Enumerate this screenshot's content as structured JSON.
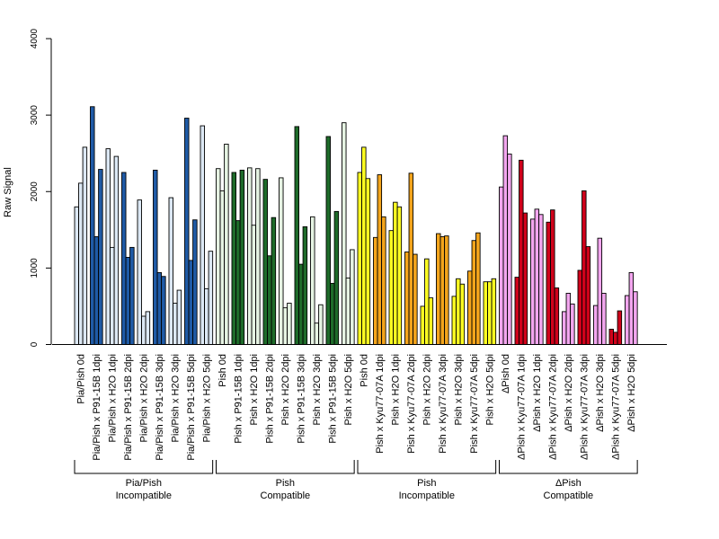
{
  "chart_data": {
    "type": "bar",
    "ylabel": "Raw Signal",
    "ylim": [
      0,
      4000
    ],
    "yticks": [
      0,
      1000,
      2000,
      3000,
      4000
    ],
    "grid": false,
    "bar_edge_color": "#000000",
    "colors": {
      "light_blue": "#dce8f4",
      "dark_blue": "#1f5aa6",
      "light_green": "#e6f4e3",
      "dark_green": "#1e6b2a",
      "yellow": "#ffff22",
      "orange": "#f4a51c",
      "pink": "#f3a6ef",
      "red": "#d0021b"
    },
    "categories": [
      {
        "label": "Pia/Pish 0d",
        "color": "light_blue",
        "values": [
          1800,
          2110,
          2580
        ]
      },
      {
        "label": "Pia/Pish x P91-15B 1dpi",
        "color": "dark_blue",
        "values": [
          3110,
          1410,
          2290
        ]
      },
      {
        "label": "Pia/Pish x H2O 1dpi",
        "color": "light_blue",
        "values": [
          2560,
          1270,
          2460
        ]
      },
      {
        "label": "Pia/Pish x P91-15B 2dpi",
        "color": "dark_blue",
        "values": [
          2250,
          1140,
          1270
        ]
      },
      {
        "label": "Pia/Pish x H2O 2dpi",
        "color": "light_blue",
        "values": [
          1890,
          370,
          430
        ]
      },
      {
        "label": "Pia/Pish x P91-15B 3dpi",
        "color": "dark_blue",
        "values": [
          2280,
          940,
          890
        ]
      },
      {
        "label": "Pia/Pish x H2O 3dpi",
        "color": "light_blue",
        "values": [
          1920,
          540,
          710
        ]
      },
      {
        "label": "Pia/Pish x P91-15B 5dpi",
        "color": "dark_blue",
        "values": [
          2960,
          1100,
          1630
        ]
      },
      {
        "label": "Pia/Pish x H2O 5dpi",
        "color": "light_blue",
        "values": [
          2860,
          730,
          1220
        ]
      },
      {
        "label": "Pish 0d",
        "color": "light_green",
        "values": [
          2300,
          2010,
          2620
        ]
      },
      {
        "label": "Pish x P91-15B 1dpi",
        "color": "dark_green",
        "values": [
          2250,
          1620,
          2280
        ]
      },
      {
        "label": "Pish x H2O 1dpi",
        "color": "light_green",
        "values": [
          2310,
          1560,
          2300
        ]
      },
      {
        "label": "Pish x P91-15B 2dpi",
        "color": "dark_green",
        "values": [
          2160,
          1160,
          1660
        ]
      },
      {
        "label": "Pish x H2O 2dpi",
        "color": "light_green",
        "values": [
          2180,
          480,
          540
        ]
      },
      {
        "label": "Pish x P91-15B 3dpi",
        "color": "dark_green",
        "values": [
          2850,
          1050,
          1540
        ]
      },
      {
        "label": "Pish x H2O 3dpi",
        "color": "light_green",
        "values": [
          1670,
          280,
          520
        ]
      },
      {
        "label": "Pish x P91-15B 5dpi",
        "color": "dark_green",
        "values": [
          2720,
          800,
          1740
        ]
      },
      {
        "label": "Pish x H2O 5dpi",
        "color": "light_green",
        "values": [
          2900,
          870,
          1240
        ]
      },
      {
        "label": "Pish 0d",
        "color": "yellow",
        "values": [
          2250,
          2580,
          2170
        ]
      },
      {
        "label": "Pish x Kyu77-07A 1dpi",
        "color": "orange",
        "values": [
          1400,
          2220,
          1670
        ]
      },
      {
        "label": "Pish x H2O 1dpi",
        "color": "yellow",
        "values": [
          1490,
          1860,
          1800
        ]
      },
      {
        "label": "Pish x Kyu77-07A 2dpi",
        "color": "orange",
        "values": [
          1210,
          2240,
          1180
        ]
      },
      {
        "label": "Pish x H2O 2dpi",
        "color": "yellow",
        "values": [
          500,
          1120,
          610
        ]
      },
      {
        "label": "Pish x Kyu77-07A 3dpi",
        "color": "orange",
        "values": [
          1450,
          1410,
          1420
        ]
      },
      {
        "label": "Pish x H2O 3dpi",
        "color": "yellow",
        "values": [
          630,
          860,
          790
        ]
      },
      {
        "label": "Pish x Kyu77-07A 5dpi",
        "color": "orange",
        "values": [
          960,
          1360,
          1460
        ]
      },
      {
        "label": "Pish x H2O 5dpi",
        "color": "yellow",
        "values": [
          820,
          820,
          860
        ]
      },
      {
        "label": "ΔPish 0d",
        "color": "pink",
        "values": [
          2060,
          2730,
          2490
        ]
      },
      {
        "label": "ΔPish x Kyu77-07A 1dpi",
        "color": "red",
        "values": [
          880,
          2410,
          1720
        ]
      },
      {
        "label": "ΔPish x H2O 1dpi",
        "color": "pink",
        "values": [
          1640,
          1770,
          1700
        ]
      },
      {
        "label": "ΔPish x Kyu77-07A 2dpi",
        "color": "red",
        "values": [
          1600,
          1760,
          740
        ]
      },
      {
        "label": "ΔPish x H2O 2dpi",
        "color": "pink",
        "values": [
          430,
          670,
          530
        ]
      },
      {
        "label": "ΔPish x Kyu77-07A 3dpi",
        "color": "red",
        "values": [
          970,
          2010,
          1280
        ]
      },
      {
        "label": "ΔPish x H2O 3dpi",
        "color": "pink",
        "values": [
          510,
          1390,
          670
        ]
      },
      {
        "label": "ΔPish x Kyu77-07A 5dpi",
        "color": "red",
        "values": [
          200,
          160,
          440
        ]
      },
      {
        "label": "ΔPish x H2O 5dpi",
        "color": "pink",
        "values": [
          640,
          940,
          690
        ]
      }
    ],
    "groups": [
      {
        "line1": "Pia/Pish",
        "line2": "Incompatible",
        "start": 0,
        "end": 8
      },
      {
        "line1": "Pish",
        "line2": "Compatible",
        "start": 9,
        "end": 17
      },
      {
        "line1": "Pish",
        "line2": "Incompatible",
        "start": 18,
        "end": 26
      },
      {
        "line1": "ΔPish",
        "line2": "Compatible",
        "start": 27,
        "end": 35
      }
    ]
  }
}
